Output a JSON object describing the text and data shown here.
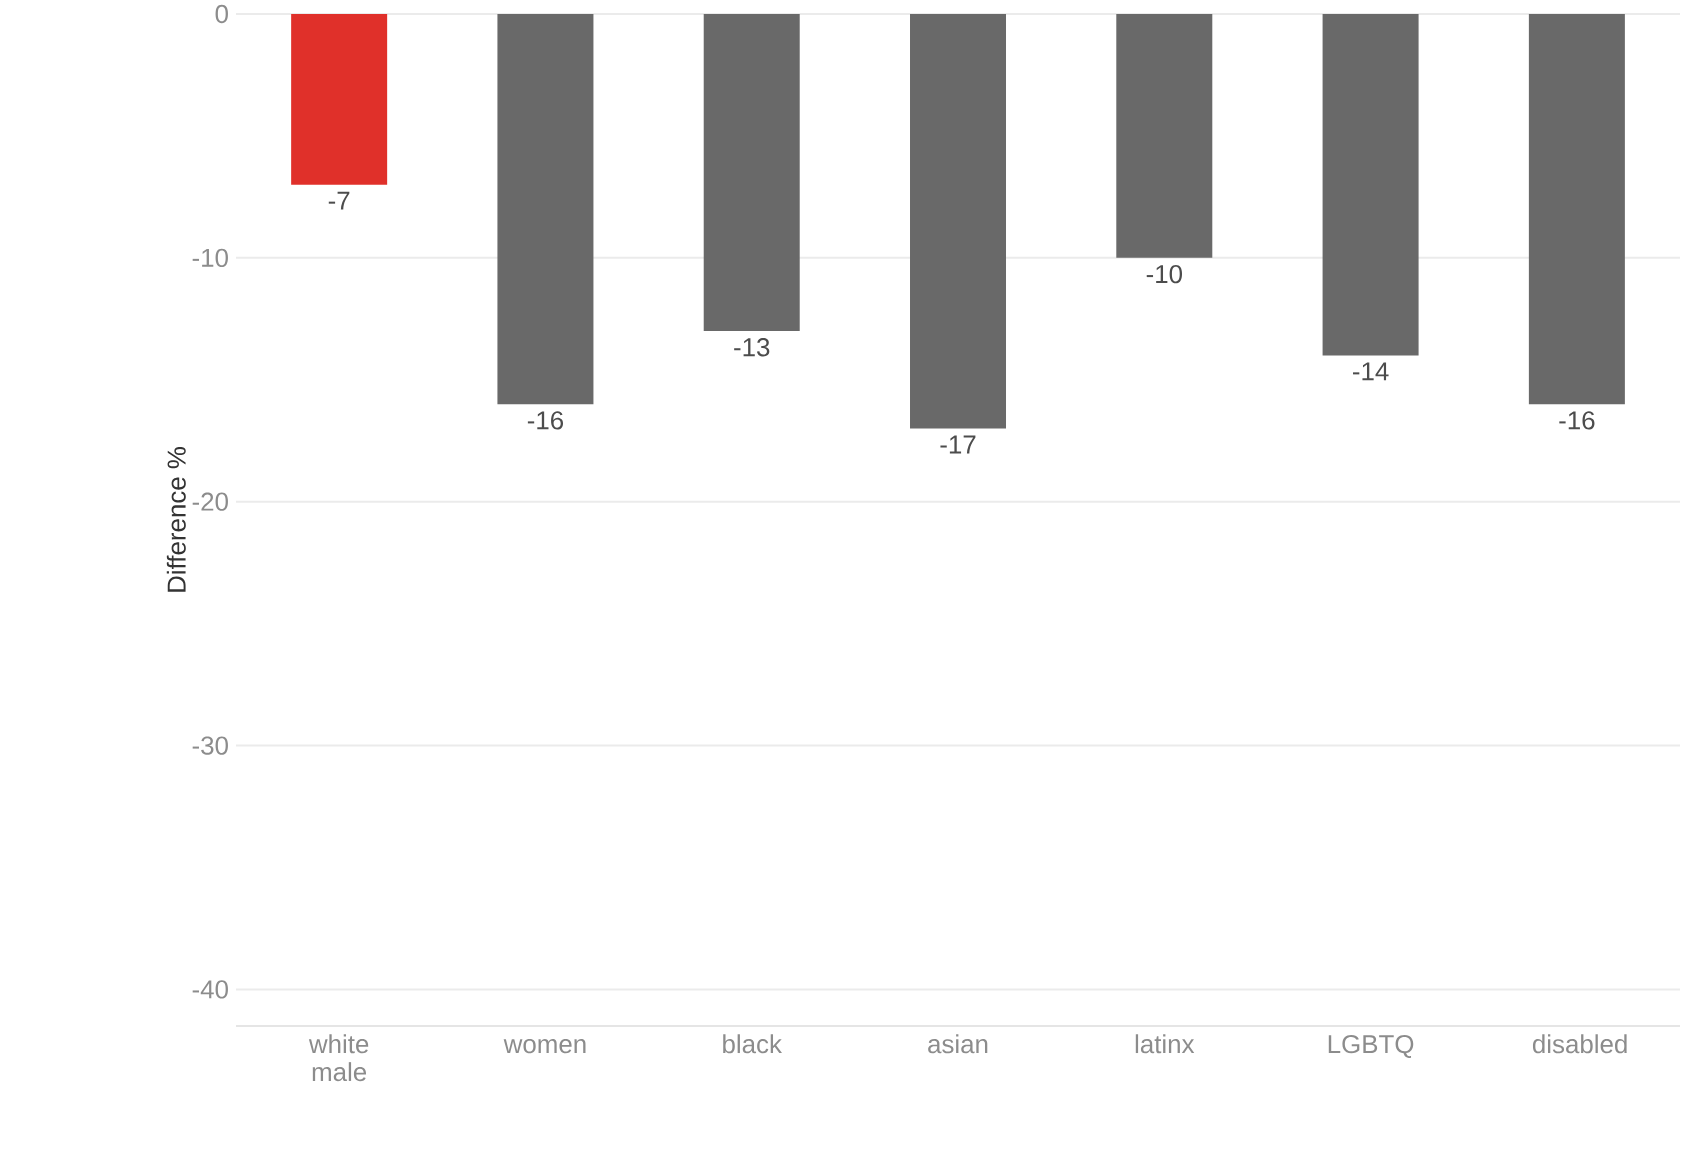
{
  "chart_data": {
    "type": "bar",
    "ylabel": "Difference %",
    "categories": [
      "white male",
      "women",
      "black",
      "asian",
      "latinx",
      "LGBTQ",
      "disabled"
    ],
    "values": [
      -7,
      -16,
      -13,
      -17,
      -10,
      -14,
      -16
    ],
    "colors": [
      "#e0302a",
      "#696969",
      "#696969",
      "#696969",
      "#696969",
      "#696969",
      "#696969"
    ],
    "ylim": [
      -41.5,
      0
    ],
    "yticks": [
      0,
      -10,
      -20,
      -30,
      -40
    ],
    "grid": "y",
    "data_labels": true
  }
}
